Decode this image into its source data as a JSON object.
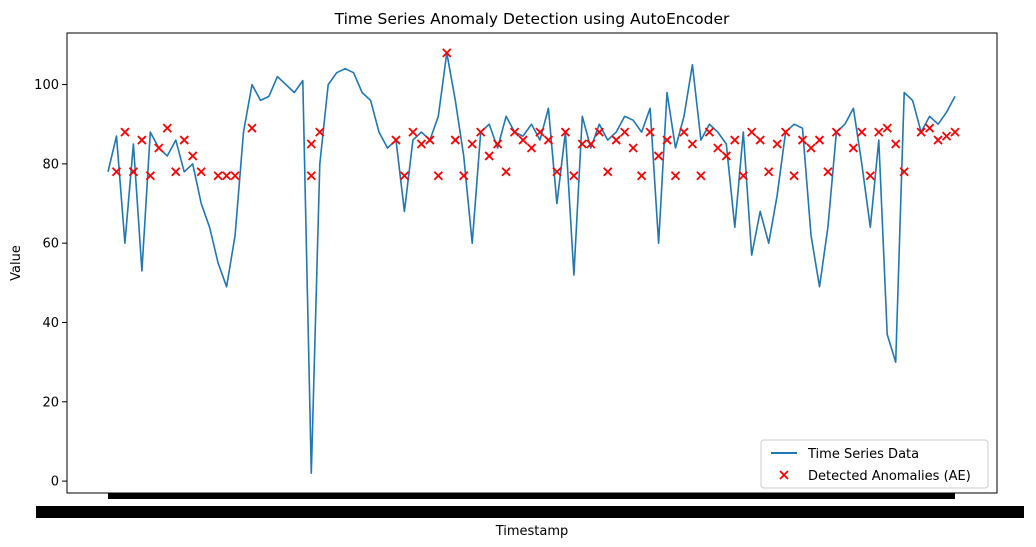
{
  "chart_data": {
    "type": "line",
    "title": "Time Series Anomaly Detection using AutoEncoder",
    "xlabel": "Timestamp",
    "ylabel": "Value",
    "ylim": [
      -3,
      113
    ],
    "yticks": [
      0,
      20,
      40,
      60,
      80,
      100
    ],
    "x_tick_labels_note": "",
    "grid": false,
    "legend_position": "lower right",
    "colors": {
      "series": "#1f77b4",
      "anomalies": "#ff0000"
    },
    "series": [
      {
        "name": "Time Series Data",
        "style": "line",
        "x": [
          0,
          1,
          2,
          3,
          4,
          5,
          6,
          7,
          8,
          9,
          10,
          11,
          12,
          13,
          14,
          15,
          16,
          17,
          18,
          19,
          20,
          21,
          22,
          23,
          24,
          25,
          26,
          27,
          28,
          29,
          30,
          31,
          32,
          33,
          34,
          35,
          36,
          37,
          38,
          39,
          40,
          41,
          42,
          43,
          44,
          45,
          46,
          47,
          48,
          49,
          50,
          51,
          52,
          53,
          54,
          55,
          56,
          57,
          58,
          59,
          60,
          61,
          62,
          63,
          64,
          65,
          66,
          67,
          68,
          69,
          70,
          71,
          72,
          73,
          74,
          75,
          76,
          77,
          78,
          79,
          80,
          81,
          82,
          83,
          84,
          85,
          86,
          87,
          88,
          89,
          90,
          91,
          92,
          93,
          94,
          95,
          96,
          97,
          98,
          99,
          100
        ],
        "values": [
          78,
          87,
          60,
          85,
          53,
          88,
          84,
          82,
          86,
          78,
          80,
          70,
          64,
          55,
          49,
          62,
          88,
          100,
          96,
          97,
          102,
          100,
          98,
          101,
          2,
          80,
          100,
          103,
          104,
          103,
          98,
          96,
          88,
          84,
          86,
          68,
          86,
          88,
          86,
          92,
          108,
          96,
          82,
          60,
          88,
          90,
          84,
          92,
          88,
          87,
          90,
          86,
          94,
          70,
          88,
          52,
          92,
          84,
          90,
          86,
          88,
          92,
          91,
          88,
          94,
          60,
          98,
          84,
          92,
          105,
          86,
          90,
          88,
          85,
          64,
          88,
          57,
          68,
          60,
          72,
          88,
          90,
          89,
          62,
          49,
          64,
          88,
          90,
          94,
          80,
          64,
          86,
          37,
          30,
          98,
          96,
          88,
          92,
          90,
          93,
          97
        ]
      },
      {
        "name": "Detected Anomalies (AE)",
        "style": "scatter-x",
        "x": [
          1,
          2,
          3,
          4,
          5,
          6,
          7,
          8,
          9,
          10,
          11,
          13,
          14,
          15,
          17,
          24,
          24,
          25,
          34,
          35,
          36,
          37,
          38,
          39,
          40,
          41,
          42,
          43,
          44,
          45,
          46,
          47,
          48,
          49,
          50,
          51,
          52,
          53,
          54,
          55,
          56,
          57,
          58,
          59,
          60,
          61,
          62,
          63,
          64,
          65,
          66,
          67,
          68,
          69,
          70,
          71,
          72,
          73,
          74,
          75,
          76,
          77,
          78,
          79,
          80,
          81,
          82,
          83,
          84,
          85,
          86,
          88,
          89,
          90,
          91,
          92,
          93,
          94,
          96,
          97,
          98,
          99,
          100
        ],
        "values": [
          78,
          88,
          78,
          86,
          77,
          84,
          89,
          78,
          86,
          82,
          78,
          77,
          77,
          77,
          89,
          77,
          85,
          88,
          86,
          77,
          88,
          85,
          86,
          77,
          108,
          86,
          77,
          85,
          88,
          82,
          85,
          78,
          88,
          86,
          84,
          88,
          86,
          78,
          88,
          77,
          85,
          85,
          88,
          78,
          86,
          88,
          84,
          77,
          88,
          82,
          86,
          77,
          88,
          85,
          77,
          88,
          84,
          82,
          86,
          77,
          88,
          86,
          78,
          85,
          88,
          77,
          86,
          84,
          86,
          78,
          88,
          84,
          88,
          77,
          88,
          89,
          85,
          78,
          88,
          89,
          86,
          87,
          88
        ]
      }
    ]
  }
}
